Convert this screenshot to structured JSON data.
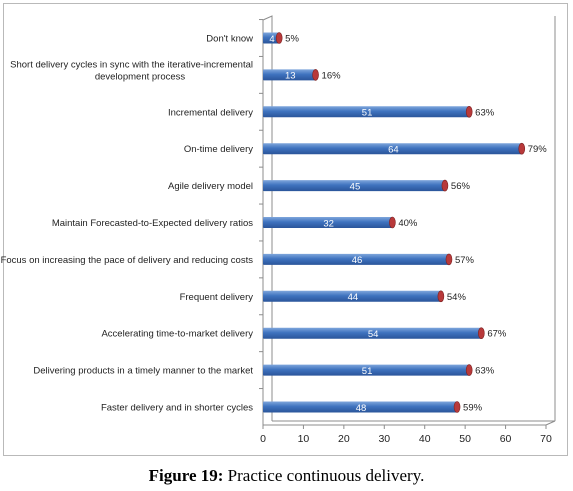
{
  "chart_data": {
    "type": "bar",
    "orientation": "horizontal",
    "categories": [
      "Don't know",
      "Short delivery cycles in sync with the iterative-incremental development process",
      "Incremental delivery",
      "On-time delivery",
      "Agile delivery model",
      "Maintain Forecasted-to-Expected delivery ratios",
      "Focus on increasing the pace of delivery and reducing costs",
      "Frequent delivery",
      "Accelerating time-to-market delivery",
      "Delivering products in a timely manner to the market",
      "Faster delivery and in shorter cycles"
    ],
    "category_lines": [
      [
        "Don't know"
      ],
      [
        "Short delivery cycles in sync with the iterative-incremental",
        "development process"
      ],
      [
        "Incremental delivery"
      ],
      [
        "On-time delivery"
      ],
      [
        "Agile delivery model"
      ],
      [
        "Maintain Forecasted-to-Expected delivery ratios"
      ],
      [
        "Focus on increasing the pace of delivery and reducing costs"
      ],
      [
        "Frequent delivery"
      ],
      [
        "Accelerating time-to-market delivery"
      ],
      [
        "Delivering products in a timely manner to the market"
      ],
      [
        "Faster delivery and in shorter cycles"
      ]
    ],
    "values": [
      4,
      13,
      51,
      64,
      45,
      32,
      46,
      44,
      54,
      51,
      48
    ],
    "percent_labels": [
      "5%",
      "16%",
      "63%",
      "79%",
      "56%",
      "40%",
      "57%",
      "54%",
      "67%",
      "63%",
      "59%"
    ],
    "xlim": [
      0,
      70
    ],
    "xticks": [
      "0",
      "10",
      "20",
      "30",
      "40",
      "50",
      "60",
      "70"
    ],
    "grid": false,
    "legend": "none",
    "colors": {
      "bar_top": "#7fa6dc",
      "bar_mid": "#3f73bf",
      "bar_bottom": "#2a559a",
      "bar_end": "#b8393a",
      "axis": "#8c8c8c",
      "text": "#1f1f1f"
    }
  },
  "caption": {
    "label": "Figure 19:",
    "text": " Practice continuous delivery."
  }
}
